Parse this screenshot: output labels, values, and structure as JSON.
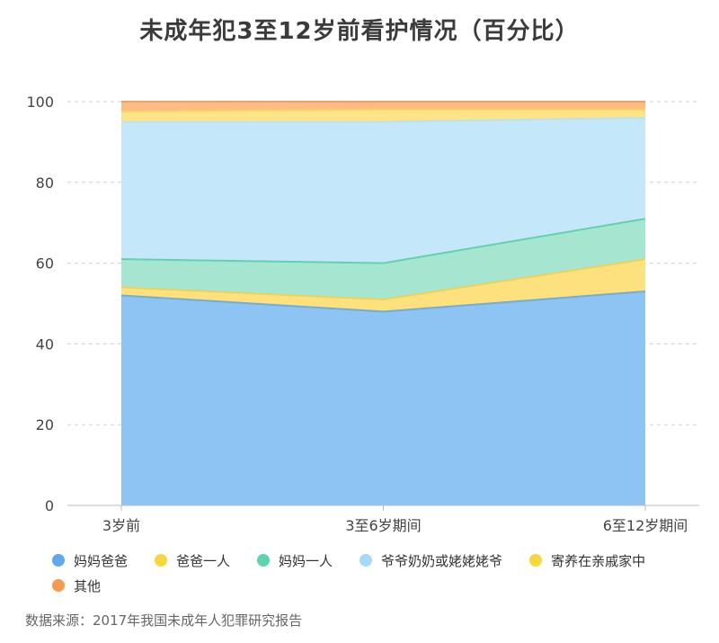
{
  "title": "未成年犯3至12岁前看护情况（百分比）",
  "source": "数据来源：2017年我国未成年人犯罪研究报告",
  "chart_data": {
    "type": "area",
    "stacked": true,
    "categories": [
      "3岁前",
      "3至6岁期间",
      "6至12岁期间"
    ],
    "y_ticks": [
      0,
      20,
      40,
      60,
      80,
      100
    ],
    "ylim": [
      0,
      100
    ],
    "grid": true,
    "legend_position": "bottom",
    "series": [
      {
        "name": "妈妈爸爸",
        "color": "#8ec4f3",
        "line": "#6aaee8",
        "dot": "#5fa8ec",
        "values": [
          52,
          48,
          53
        ]
      },
      {
        "name": "爸爸一人",
        "color": "#fde17f",
        "line": "#f5d04e",
        "dot": "#f8d63f",
        "values": [
          2,
          3,
          8
        ]
      },
      {
        "name": "妈妈一人",
        "color": "#a6e6d0",
        "line": "#5fd3ad",
        "dot": "#5fd3ad",
        "values": [
          7,
          9,
          10
        ]
      },
      {
        "name": "爷爷奶奶或姥姥姥爷",
        "color": "#c4e7fa",
        "line": "#b7e2f8",
        "dot": "#a6d9f5",
        "values": [
          34,
          35,
          25
        ]
      },
      {
        "name": "寄养在亲戚家中",
        "color": "#fde48a",
        "line": "#f7d85a",
        "dot": "#f8d63f",
        "values": [
          2.5,
          3,
          2
        ]
      },
      {
        "name": "其他",
        "color": "#fbbd85",
        "line": "#f6a05b",
        "dot": "#f59a4f",
        "values": [
          2.5,
          2,
          2
        ]
      }
    ]
  }
}
